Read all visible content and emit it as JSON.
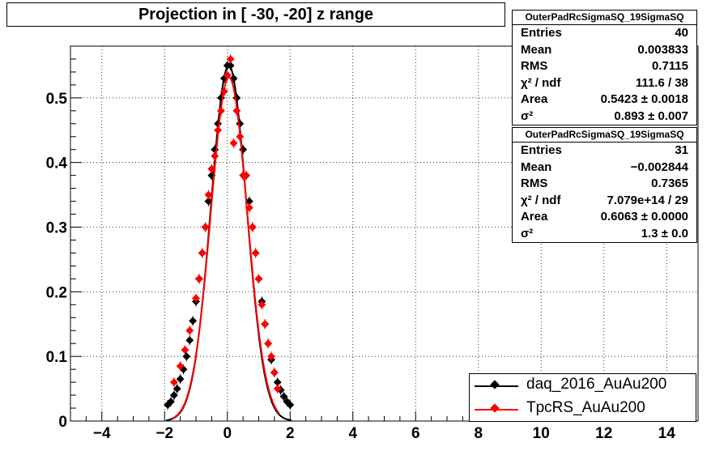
{
  "title": "Projection in [ -30, -20] z range",
  "stats_boxes": [
    {
      "name": "OuterPadRcSigmaSQ_19SigmaSQ",
      "rows": [
        {
          "label": "Entries",
          "value": "40"
        },
        {
          "label": "Mean",
          "value": "0.003833"
        },
        {
          "label": "RMS",
          "value": "0.7115"
        },
        {
          "label": "χ² / ndf",
          "value": "111.6 / 38"
        },
        {
          "label": "Area",
          "value": "0.5423 ± 0.0018"
        },
        {
          "label": "σ²",
          "value": "0.893 ± 0.007"
        }
      ]
    },
    {
      "name": "OuterPadRcSigmaSQ_19SigmaSQ",
      "rows": [
        {
          "label": "Entries",
          "value": "31"
        },
        {
          "label": "Mean",
          "value": "−0.002844"
        },
        {
          "label": "RMS",
          "value": "0.7365"
        },
        {
          "label": "χ² / ndf",
          "value": "7.079e+14 / 29"
        },
        {
          "label": "Area",
          "value": "0.6063 ± 0.0000"
        },
        {
          "label": "σ²",
          "value": "1.3 ± 0.0"
        }
      ]
    }
  ],
  "legend": [
    {
      "label": "daq_2016_AuAu200",
      "color": "#000000"
    },
    {
      "label": "TpcRS_AuAu200",
      "color": "#ff0000"
    }
  ],
  "chart_data": {
    "type": "scatter",
    "title": "Projection in [ -30, -20] z range",
    "xlim": [
      -5,
      15
    ],
    "ylim": [
      0,
      0.58
    ],
    "x_ticks": [
      -4,
      -2,
      0,
      2,
      4,
      6,
      8,
      10,
      12,
      14
    ],
    "y_ticks": [
      0,
      0.1,
      0.2,
      0.3,
      0.4,
      0.5
    ],
    "grid": true,
    "legend_position": "bottom-right",
    "series": [
      {
        "name": "daq_2016_AuAu200",
        "color": "#000000",
        "points": [
          [
            -1.9,
            0.025
          ],
          [
            -1.8,
            0.03
          ],
          [
            -1.7,
            0.04
          ],
          [
            -1.6,
            0.05
          ],
          [
            -1.5,
            0.065
          ],
          [
            -1.4,
            0.08
          ],
          [
            -1.3,
            0.1
          ],
          [
            -1.2,
            0.125
          ],
          [
            -1.1,
            0.155
          ],
          [
            -1.0,
            0.185
          ],
          [
            -0.9,
            0.22
          ],
          [
            -0.8,
            0.26
          ],
          [
            -0.7,
            0.3
          ],
          [
            -0.6,
            0.34
          ],
          [
            -0.5,
            0.38
          ],
          [
            -0.4,
            0.42
          ],
          [
            -0.3,
            0.46
          ],
          [
            -0.2,
            0.5
          ],
          [
            -0.1,
            0.53
          ],
          [
            0.0,
            0.55
          ],
          [
            0.1,
            0.55
          ],
          [
            0.2,
            0.53
          ],
          [
            0.3,
            0.5
          ],
          [
            0.4,
            0.46
          ],
          [
            0.5,
            0.42
          ],
          [
            0.6,
            0.38
          ],
          [
            0.7,
            0.34
          ],
          [
            0.8,
            0.3
          ],
          [
            0.9,
            0.26
          ],
          [
            1.0,
            0.22
          ],
          [
            1.1,
            0.185
          ],
          [
            1.2,
            0.15
          ],
          [
            1.3,
            0.12
          ],
          [
            1.4,
            0.095
          ],
          [
            1.5,
            0.075
          ],
          [
            1.6,
            0.06
          ],
          [
            1.7,
            0.048
          ],
          [
            1.8,
            0.038
          ],
          [
            1.9,
            0.03
          ],
          [
            2.0,
            0.025
          ]
        ]
      },
      {
        "name": "TpcRS_AuAu200",
        "color": "#ff0000",
        "points": [
          [
            -1.7,
            0.06
          ],
          [
            -1.5,
            0.085
          ],
          [
            -1.35,
            0.11
          ],
          [
            -1.2,
            0.14
          ],
          [
            -1.0,
            0.19
          ],
          [
            -0.9,
            0.22
          ],
          [
            -0.8,
            0.26
          ],
          [
            -0.7,
            0.3
          ],
          [
            -0.6,
            0.35
          ],
          [
            -0.5,
            0.39
          ],
          [
            -0.4,
            0.41
          ],
          [
            -0.3,
            0.45
          ],
          [
            -0.2,
            0.48
          ],
          [
            -0.1,
            0.51
          ],
          [
            0.0,
            0.535
          ],
          [
            0.1,
            0.56
          ],
          [
            0.2,
            0.43
          ],
          [
            0.3,
            0.48
          ],
          [
            0.4,
            0.44
          ],
          [
            0.5,
            0.38
          ],
          [
            0.6,
            0.38
          ],
          [
            0.7,
            0.33
          ],
          [
            0.8,
            0.3
          ],
          [
            0.9,
            0.26
          ],
          [
            1.0,
            0.22
          ],
          [
            1.1,
            0.18
          ],
          [
            1.2,
            0.15
          ],
          [
            1.3,
            0.12
          ],
          [
            1.4,
            0.1
          ],
          [
            1.5,
            0.075
          ],
          [
            1.6,
            0.05
          ]
        ]
      }
    ]
  }
}
